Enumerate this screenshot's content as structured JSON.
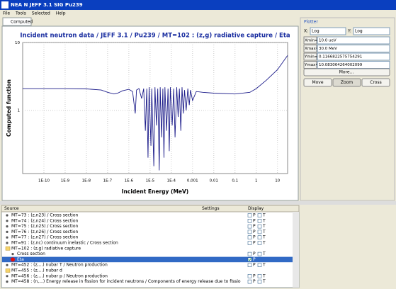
{
  "window": {
    "title": "NEA N JEFF 3.1 SIG Pu239",
    "menu": [
      "File",
      "Tools",
      "Selected",
      "Help"
    ],
    "tab": "Computed"
  },
  "chart_data": {
    "type": "line",
    "title": "Incident neutron data / JEFF 3.1 / Pu239 / MT=102 : (z,g) radiative capture / Eta",
    "x_label": "Incident Energy (MeV)",
    "y_label": "Computed function",
    "log_x": true,
    "log_y": true,
    "grid": true,
    "xlim": [
      1e-11,
      30
    ],
    "ylim": [
      0.1166822575754291,
      10.083064264002099
    ],
    "xticks": [
      {
        "value": 1e-10,
        "label": "1E-10"
      },
      {
        "value": 1e-09,
        "label": "1E-9"
      },
      {
        "value": 1e-08,
        "label": "1E-8"
      },
      {
        "value": 1e-07,
        "label": "1E-7"
      },
      {
        "value": 1e-06,
        "label": "1E-6"
      },
      {
        "value": 1e-05,
        "label": "1E-5"
      },
      {
        "value": 0.0001,
        "label": "1E-4"
      },
      {
        "value": 0.001,
        "label": "0,001"
      },
      {
        "value": 0.01,
        "label": "0,01"
      },
      {
        "value": 0.1,
        "label": "0,1"
      },
      1,
      10
    ],
    "yticks": [
      1,
      10
    ],
    "series": [
      {
        "name": "Eta",
        "color": "#1c1c8a",
        "x": [
          1e-11,
          1e-10,
          1e-09,
          1e-08,
          5e-08,
          1e-07,
          2e-07,
          3e-07,
          5e-07,
          1e-06,
          1.5e-06,
          2e-06,
          2.3e-06,
          3e-06,
          4e-06,
          5e-06,
          6e-06,
          7e-06,
          8e-06,
          9e-06,
          1.1e-05,
          1.2e-05,
          1.5e-05,
          1.7e-05,
          2e-05,
          2.3e-05,
          2.7e-05,
          3e-05,
          3.5e-05,
          4e-05,
          4.5e-05,
          5e-05,
          6e-05,
          7e-05,
          8e-05,
          9e-05,
          0.00011,
          0.00013,
          0.00015,
          0.00018,
          0.00021,
          0.00024,
          0.00028,
          0.00032,
          0.00037,
          0.00042,
          0.0005,
          0.0006,
          0.0007,
          0.0008,
          0.001,
          0.0015,
          0.003,
          0.01,
          0.1,
          0.5,
          1,
          3,
          10,
          30
        ],
        "values": [
          2.1,
          2.1,
          2.1,
          2.08,
          2.0,
          1.85,
          1.75,
          1.8,
          1.95,
          2.05,
          1.9,
          0.9,
          2.0,
          2.1,
          1.5,
          2.1,
          0.5,
          2.1,
          0.2,
          2.2,
          0.3,
          2.1,
          0.15,
          2.2,
          0.6,
          2.1,
          0.13,
          2.2,
          0.4,
          2.1,
          0.2,
          2.2,
          0.5,
          2.1,
          0.25,
          2.2,
          0.6,
          2.1,
          0.4,
          2.2,
          0.8,
          2.1,
          0.5,
          2.2,
          0.9,
          2.0,
          1.0,
          2.1,
          1.2,
          2.0,
          1.4,
          1.9,
          1.85,
          1.8,
          1.75,
          1.85,
          2.1,
          2.8,
          4.0,
          6.5
        ]
      }
    ]
  },
  "plotter": {
    "title": "Plotter",
    "x_axis_label": "X:",
    "x_scale": "Log",
    "y_axis_label": "Y:",
    "y_scale": "Log",
    "fields": [
      {
        "label": "Xmin=",
        "value": "10.0 ueV"
      },
      {
        "label": "Xmax=",
        "value": "30.0 MeV"
      },
      {
        "label": "Ymin=",
        "value": "0.1166822575754291"
      },
      {
        "label": "Ymax=",
        "value": "10.083064264002099"
      }
    ],
    "more_button": "More...",
    "buttons": [
      "Move",
      "Zoom",
      "Cross"
    ]
  },
  "tree": {
    "columns": [
      "Source",
      "Settings",
      "Display"
    ],
    "rows": [
      {
        "label": "MT=73 : (z,n23) / Cross section",
        "display": [
          "P",
          "T"
        ]
      },
      {
        "label": "MT=74 : (z,n24) / Cross section",
        "display": [
          "P",
          "T"
        ]
      },
      {
        "label": "MT=75 : (z,n25) / Cross section",
        "display": [
          "P",
          "T"
        ]
      },
      {
        "label": "MT=76 : (z,n26) / Cross section",
        "display": [
          "P",
          "T"
        ]
      },
      {
        "label": "MT=77 : (z,n27) / Cross section",
        "display": [
          "P",
          "T"
        ]
      },
      {
        "label": "MT=91 : (z,nc) continuum inelastic / Cross section",
        "display": [
          "P",
          "T"
        ]
      },
      {
        "label": "MT=102 : (z,g) radiative capture",
        "display": []
      },
      {
        "label": "Cross section",
        "display": [
          "P",
          "T"
        ]
      },
      {
        "label": "Eta",
        "display": [
          "P"
        ]
      },
      {
        "label": "MT=452 : (z,...) nubar T / Neutron production",
        "display": [
          "P",
          "T"
        ]
      },
      {
        "label": "MT=455 : (z,...) nubar d",
        "display": []
      },
      {
        "label": "MT=456 : (z,...) nubar p / Neutron production",
        "display": [
          "P",
          "T"
        ]
      },
      {
        "label": "MT=458 : (n,...) Energy release in fission for incident neutrons / Components of energy release due to fissio",
        "display": [
          "P",
          "T"
        ]
      }
    ]
  }
}
